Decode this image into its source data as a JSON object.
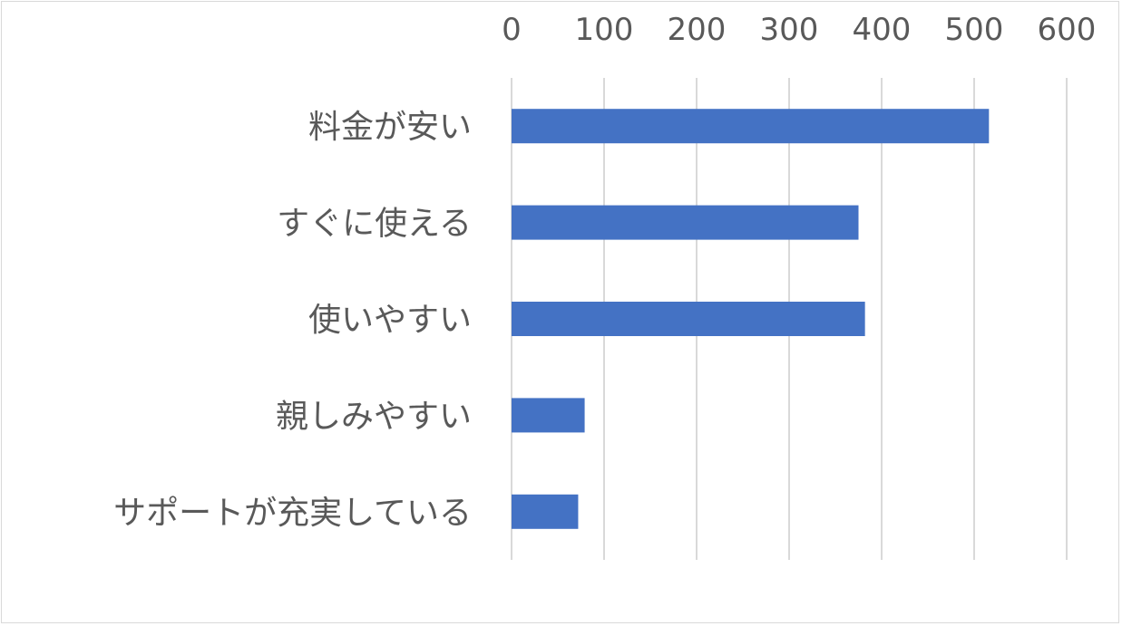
{
  "chart_data": {
    "type": "bar",
    "orientation": "horizontal",
    "categories": [
      "料金が安い",
      "すぐに使える",
      "使いやすい",
      "親しみやすい",
      "サポートが充実している"
    ],
    "values": [
      516,
      375,
      382,
      79,
      72
    ],
    "xlim": [
      0,
      600
    ],
    "xticks": [
      0,
      100,
      200,
      300,
      400,
      500,
      600
    ],
    "x_axis_position": "top",
    "grid": true,
    "legend": "none",
    "bar_color": "#4472C4",
    "grid_color": "#d9d9d9",
    "text_color": "#595959"
  }
}
